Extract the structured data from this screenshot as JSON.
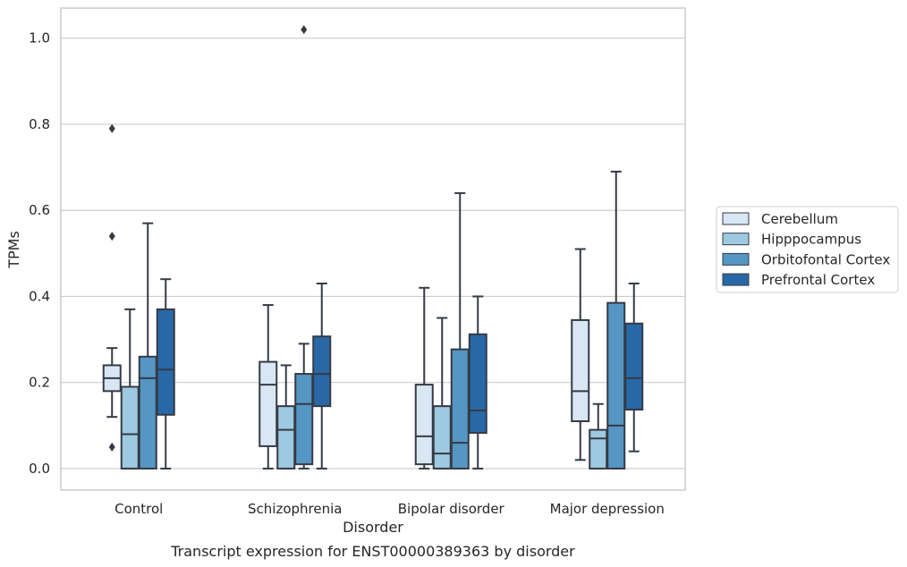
{
  "chart_data": {
    "type": "box",
    "title": "",
    "caption": "Transcript expression for ENST00000389363 by disorder",
    "xlabel": "Disorder",
    "ylabel": "TPMs",
    "ylim": [
      -0.05,
      1.07
    ],
    "yticks": [
      0.0,
      0.2,
      0.4,
      0.6,
      0.8,
      1.0
    ],
    "ytick_labels": [
      "0.0",
      "0.2",
      "0.4",
      "0.6",
      "0.8",
      "1.0"
    ],
    "grid": "horizontal",
    "legend_position": "right",
    "categories": [
      "Control",
      "Schizophrenia",
      "Bipolar disorder",
      "Major depression"
    ],
    "series": [
      {
        "name": "Cerebellum",
        "color": "#d9e7f5",
        "boxes": [
          {
            "whisker_low": 0.12,
            "q1": 0.18,
            "median": 0.21,
            "q3": 0.24,
            "whisker_high": 0.28,
            "outliers": [
              0.79,
              0.54,
              0.05
            ]
          },
          {
            "whisker_low": 0.0,
            "q1": 0.052,
            "median": 0.195,
            "q3": 0.248,
            "whisker_high": 0.38,
            "outliers": []
          },
          {
            "whisker_low": 0.0,
            "q1": 0.01,
            "median": 0.075,
            "q3": 0.195,
            "whisker_high": 0.42,
            "outliers": []
          },
          {
            "whisker_low": 0.02,
            "q1": 0.11,
            "median": 0.18,
            "q3": 0.345,
            "whisker_high": 0.51,
            "outliers": []
          }
        ]
      },
      {
        "name": "Hipppocampus",
        "color": "#9ecae1",
        "boxes": [
          {
            "whisker_low": 0.0,
            "q1": 0.0,
            "median": 0.08,
            "q3": 0.19,
            "whisker_high": 0.37,
            "outliers": []
          },
          {
            "whisker_low": 0.0,
            "q1": 0.0,
            "median": 0.09,
            "q3": 0.145,
            "whisker_high": 0.24,
            "outliers": []
          },
          {
            "whisker_low": 0.0,
            "q1": 0.0,
            "median": 0.035,
            "q3": 0.145,
            "whisker_high": 0.35,
            "outliers": []
          },
          {
            "whisker_low": 0.0,
            "q1": 0.0,
            "median": 0.07,
            "q3": 0.09,
            "whisker_high": 0.15,
            "outliers": []
          }
        ]
      },
      {
        "name": "Orbitofontal Cortex",
        "color": "#5596c4",
        "boxes": [
          {
            "whisker_low": 0.0,
            "q1": 0.0,
            "median": 0.21,
            "q3": 0.26,
            "whisker_high": 0.57,
            "outliers": []
          },
          {
            "whisker_low": 0.0,
            "q1": 0.01,
            "median": 0.15,
            "q3": 0.22,
            "whisker_high": 0.29,
            "outliers": [
              1.02
            ]
          },
          {
            "whisker_low": 0.0,
            "q1": 0.0,
            "median": 0.06,
            "q3": 0.277,
            "whisker_high": 0.64,
            "outliers": []
          },
          {
            "whisker_low": 0.0,
            "q1": 0.0,
            "median": 0.1,
            "q3": 0.385,
            "whisker_high": 0.69,
            "outliers": []
          }
        ]
      },
      {
        "name": "Prefrontal Cortex",
        "color": "#2868a6",
        "boxes": [
          {
            "whisker_low": 0.0,
            "q1": 0.125,
            "median": 0.23,
            "q3": 0.37,
            "whisker_high": 0.44,
            "outliers": []
          },
          {
            "whisker_low": 0.0,
            "q1": 0.145,
            "median": 0.22,
            "q3": 0.307,
            "whisker_high": 0.43,
            "outliers": []
          },
          {
            "whisker_low": 0.0,
            "q1": 0.083,
            "median": 0.135,
            "q3": 0.312,
            "whisker_high": 0.4,
            "outliers": []
          },
          {
            "whisker_low": 0.04,
            "q1": 0.137,
            "median": 0.21,
            "q3": 0.337,
            "whisker_high": 0.43,
            "outliers": []
          }
        ]
      }
    ]
  }
}
